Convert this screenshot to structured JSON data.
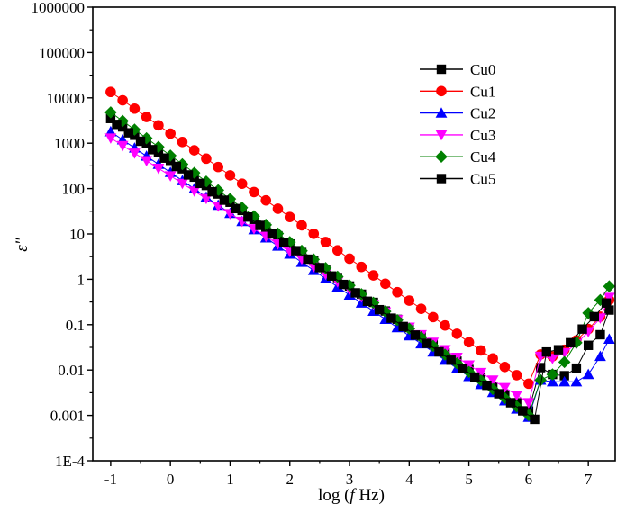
{
  "chart_data": {
    "type": "scatter",
    "title": "",
    "xlabel_prefix": "log (",
    "xlabel_var": "f",
    "xlabel_suffix": " Hz)",
    "ylabel": "ε\"",
    "xlim": [
      -1.3,
      7.45
    ],
    "ylim": [
      0.0001,
      1000000
    ],
    "yscale": "log",
    "x_ticks": [
      -1,
      0,
      1,
      2,
      3,
      4,
      5,
      6,
      7
    ],
    "x_tick_labels": [
      "-1",
      "0",
      "1",
      "2",
      "3",
      "4",
      "5",
      "6",
      "7"
    ],
    "y_ticks": [
      0.0001,
      0.001,
      0.01,
      0.1,
      1,
      10,
      100,
      1000,
      10000,
      100000,
      1000000
    ],
    "y_tick_labels": [
      "1E-4",
      "0.001",
      "0.01",
      "0.1",
      "1",
      "10",
      "100",
      "1000",
      "10000",
      "100000",
      "1000000"
    ],
    "legend_position": "top-right",
    "series": [
      {
        "name": "Cu0",
        "marker": "square",
        "color": "#000000",
        "x": [
          -1.0,
          -0.8,
          -0.6,
          -0.4,
          -0.2,
          0.0,
          0.2,
          0.4,
          0.6,
          0.8,
          1.0,
          1.2,
          1.4,
          1.6,
          1.8,
          2.0,
          2.2,
          2.4,
          2.6,
          2.8,
          3.0,
          3.2,
          3.4,
          3.6,
          3.8,
          4.0,
          4.2,
          4.4,
          4.6,
          4.8,
          5.0,
          5.2,
          5.4,
          5.6,
          5.8,
          6.0,
          6.2,
          6.4,
          6.6,
          6.8,
          7.0,
          7.2,
          7.35
        ],
        "y": [
          3500,
          2288,
          1496,
          978,
          639,
          418,
          273,
          179,
          117,
          76,
          50,
          33,
          21,
          14,
          9.1,
          6.0,
          3.9,
          2.54,
          1.66,
          1.09,
          0.71,
          0.47,
          0.31,
          0.2,
          0.131,
          0.086,
          0.056,
          0.037,
          0.024,
          0.0157,
          0.0103,
          0.0067,
          0.0044,
          0.0029,
          0.0019,
          0.00125,
          0.0113,
          0.008,
          0.0075,
          0.011,
          0.035,
          0.06,
          0.21
        ]
      },
      {
        "name": "Cu1",
        "marker": "circle",
        "color": "#ff0000",
        "x": [
          -1.0,
          -0.8,
          -0.6,
          -0.4,
          -0.2,
          0.0,
          0.2,
          0.4,
          0.6,
          0.8,
          1.0,
          1.2,
          1.4,
          1.6,
          1.8,
          2.0,
          2.2,
          2.4,
          2.6,
          2.8,
          3.0,
          3.2,
          3.4,
          3.6,
          3.8,
          4.0,
          4.2,
          4.4,
          4.6,
          4.8,
          5.0,
          5.2,
          5.4,
          5.6,
          5.8,
          6.0,
          6.2,
          6.4,
          6.6,
          6.8,
          7.0,
          7.2,
          7.35
        ],
        "y": [
          13500,
          8840,
          5790,
          3790,
          2480,
          1630,
          1066,
          698,
          457,
          299,
          196,
          128,
          84,
          55,
          36,
          23.6,
          15.5,
          10.1,
          6.64,
          4.35,
          2.85,
          1.87,
          1.22,
          0.8,
          0.52,
          0.34,
          0.224,
          0.147,
          0.096,
          0.063,
          0.041,
          0.027,
          0.018,
          0.0117,
          0.0077,
          0.005,
          0.022,
          0.02,
          0.028,
          0.045,
          0.08,
          0.15,
          0.35
        ]
      },
      {
        "name": "Cu2",
        "marker": "triangle-up",
        "color": "#0000ff",
        "x": [
          -1.0,
          -0.8,
          -0.6,
          -0.4,
          -0.2,
          0.0,
          0.2,
          0.4,
          0.6,
          0.8,
          1.0,
          1.2,
          1.4,
          1.6,
          1.8,
          2.0,
          2.2,
          2.4,
          2.6,
          2.8,
          3.0,
          3.2,
          3.4,
          3.6,
          3.8,
          4.0,
          4.2,
          4.4,
          4.6,
          4.8,
          5.0,
          5.2,
          5.4,
          5.6,
          5.8,
          6.0,
          6.2,
          6.4,
          6.6,
          6.8,
          7.0,
          7.2,
          7.35
        ],
        "y": [
          1800,
          1190,
          786,
          519,
          343,
          227,
          150,
          99,
          65,
          43,
          28.5,
          18.8,
          12.4,
          8.2,
          5.4,
          3.6,
          2.37,
          1.57,
          1.04,
          0.68,
          0.45,
          0.3,
          0.198,
          0.131,
          0.086,
          0.057,
          0.038,
          0.025,
          0.0165,
          0.0109,
          0.0072,
          0.0048,
          0.0032,
          0.0021,
          0.00138,
          0.00091,
          0.006,
          0.0055,
          0.0055,
          0.0055,
          0.008,
          0.02,
          0.048
        ]
      },
      {
        "name": "Cu3",
        "marker": "triangle-down",
        "color": "#ff00ff",
        "x": [
          -1.0,
          -0.8,
          -0.6,
          -0.4,
          -0.2,
          0.0,
          0.2,
          0.4,
          0.6,
          0.8,
          1.0,
          1.2,
          1.4,
          1.6,
          1.8,
          2.0,
          2.2,
          2.4,
          2.6,
          2.8,
          3.0,
          3.2,
          3.4,
          3.6,
          3.8,
          4.0,
          4.2,
          4.4,
          4.6,
          4.8,
          5.0,
          5.2,
          5.4,
          5.6,
          5.8,
          6.0,
          6.2,
          6.4,
          6.6,
          6.8,
          7.0,
          7.2,
          7.35
        ],
        "y": [
          1300,
          886,
          603,
          411,
          280,
          191,
          130,
          88,
          60,
          41,
          28,
          19,
          13,
          8.8,
          6.0,
          4.1,
          2.8,
          1.9,
          1.29,
          0.88,
          0.6,
          0.41,
          0.28,
          0.19,
          0.129,
          0.088,
          0.06,
          0.041,
          0.028,
          0.019,
          0.0129,
          0.0088,
          0.006,
          0.0041,
          0.0028,
          0.0019,
          0.02,
          0.018,
          0.024,
          0.038,
          0.07,
          0.14,
          0.4
        ]
      },
      {
        "name": "Cu4",
        "marker": "diamond",
        "color": "#008000",
        "x": [
          -1.0,
          -0.8,
          -0.6,
          -0.4,
          -0.2,
          0.0,
          0.2,
          0.4,
          0.6,
          0.8,
          1.0,
          1.2,
          1.4,
          1.6,
          1.8,
          2.0,
          2.2,
          2.4,
          2.6,
          2.8,
          3.0,
          3.2,
          3.4,
          3.6,
          3.8,
          4.0,
          4.2,
          4.4,
          4.6,
          4.8,
          5.0,
          5.2,
          5.4,
          5.6,
          5.8,
          6.0,
          6.2,
          6.4,
          6.6,
          6.8,
          7.0,
          7.2,
          7.35
        ],
        "y": [
          4800,
          3095,
          1996,
          1287,
          830,
          535,
          345,
          222,
          143,
          92,
          59,
          38,
          24.6,
          15.9,
          10.2,
          6.6,
          4.25,
          2.74,
          1.77,
          1.14,
          0.73,
          0.47,
          0.304,
          0.196,
          0.126,
          0.082,
          0.053,
          0.034,
          0.0219,
          0.0141,
          0.0091,
          0.0059,
          0.0038,
          0.0024,
          0.00157,
          0.00101,
          0.006,
          0.008,
          0.015,
          0.04,
          0.18,
          0.35,
          0.7
        ]
      },
      {
        "name": "Cu5",
        "marker": "square",
        "color": "#000000",
        "x": [
          -0.9,
          -0.7,
          -0.5,
          -0.3,
          -0.1,
          0.1,
          0.3,
          0.5,
          0.7,
          0.9,
          1.1,
          1.3,
          1.5,
          1.7,
          1.9,
          2.1,
          2.3,
          2.5,
          2.7,
          2.9,
          3.1,
          3.3,
          3.5,
          3.7,
          3.9,
          4.1,
          4.3,
          4.5,
          4.7,
          4.9,
          5.1,
          5.3,
          5.5,
          5.7,
          5.9,
          6.1,
          6.3,
          6.5,
          6.7,
          6.9,
          7.1,
          7.3
        ],
        "y": [
          2600,
          1696,
          1106,
          721,
          470,
          307,
          200,
          130,
          85,
          55.5,
          36.2,
          23.6,
          15.4,
          10.0,
          6.54,
          4.27,
          2.78,
          1.81,
          1.18,
          0.77,
          0.503,
          0.328,
          0.214,
          0.139,
          0.091,
          0.059,
          0.0387,
          0.0252,
          0.0165,
          0.0107,
          0.007,
          0.0046,
          0.003,
          0.0019,
          0.00126,
          0.00082,
          0.025,
          0.028,
          0.04,
          0.08,
          0.15,
          0.3
        ]
      }
    ]
  }
}
